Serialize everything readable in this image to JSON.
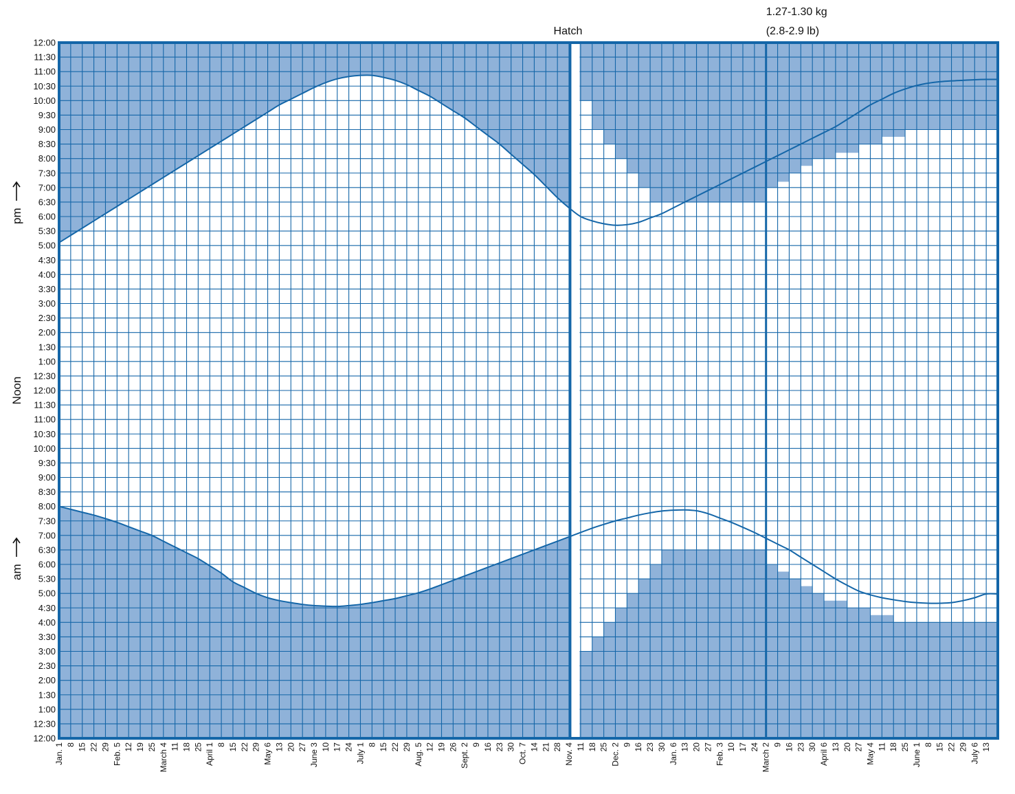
{
  "chart_data": {
    "type": "area",
    "y_ticks": [
      "12:00",
      "11:30",
      "11:00",
      "10:30",
      "10:00",
      "9:30",
      "9:00",
      "8:30",
      "8:00",
      "7:30",
      "7:00",
      "6:30",
      "6:00",
      "5:30",
      "5:00",
      "4:30",
      "4:00",
      "3:30",
      "3:00",
      "2:30",
      "2:00",
      "1:30",
      "1:00",
      "12:30",
      "12:00",
      "11:30",
      "11:00",
      "10:30",
      "10:00",
      "9:30",
      "9:00",
      "8:30",
      "8:00",
      "7:30",
      "7:00",
      "6:30",
      "6:00",
      "5:30",
      "5:00",
      "4:30",
      "4:00",
      "3:30",
      "3:00",
      "2:30",
      "2:00",
      "1:30",
      "1:00",
      "12:30",
      "12:00"
    ],
    "y_range_hours": [
      0,
      24
    ],
    "x_ticks": [
      "Jan. 1",
      "8",
      "15",
      "22",
      "29",
      "Feb. 5",
      "12",
      "19",
      "25",
      "March 4",
      "11",
      "18",
      "25",
      "April 1",
      "8",
      "15",
      "22",
      "29",
      "May 6",
      "13",
      "20",
      "27",
      "June 3",
      "10",
      "17",
      "24",
      "July 1",
      "8",
      "15",
      "22",
      "29",
      "Aug. 5",
      "12",
      "19",
      "26",
      "Sept. 2",
      "9",
      "16",
      "23",
      "30",
      "Oct. 7",
      "14",
      "21",
      "28",
      "Nov. 4",
      "11",
      "18",
      "25",
      "Dec. 2",
      "9",
      "16",
      "23",
      "30",
      "Jan. 6",
      "13",
      "20",
      "27",
      "Feb. 3",
      "10",
      "17",
      "24",
      "March 2",
      "9",
      "16",
      "23",
      "30",
      "April 6",
      "13",
      "20",
      "27",
      "May 4",
      "11",
      "18",
      "25",
      "June 1",
      "8",
      "15",
      "22",
      "29",
      "July 6",
      "13"
    ],
    "side_labels": {
      "pm": "pm",
      "noon": "Noon",
      "am": "am"
    },
    "annotations": {
      "hatch": "Hatch",
      "weight_line1": "1.27-1.30 kg",
      "weight_line2": "(2.8-2.9 lb)"
    },
    "hatch_week_index": 44.5,
    "weight_week_index": 61,
    "grid": true,
    "colors": {
      "line": "#1466a8",
      "fill": "#8fb2d9",
      "background": "#ffffff"
    },
    "series": [
      {
        "role": "sunset",
        "hours": [
          17.1,
          17.35,
          17.6,
          17.85,
          18.1,
          18.35,
          18.6,
          18.85,
          19.1,
          19.35,
          19.6,
          19.85,
          20.1,
          20.35,
          20.6,
          20.85,
          21.1,
          21.35,
          21.6,
          21.85,
          22.05,
          22.25,
          22.45,
          22.62,
          22.75,
          22.83,
          22.87,
          22.87,
          22.8,
          22.7,
          22.55,
          22.35,
          22.15,
          21.9,
          21.65,
          21.4,
          21.1,
          20.8,
          20.5,
          20.15,
          19.8,
          19.45,
          19.05,
          18.65,
          18.3,
          18.0,
          17.85,
          17.75,
          17.7,
          17.72,
          17.8,
          17.95,
          18.1,
          18.3,
          18.5,
          18.7,
          18.9,
          19.1,
          19.3,
          19.5,
          19.7,
          19.9,
          20.1,
          20.3,
          20.5,
          20.7,
          20.9,
          21.1,
          21.35,
          21.6,
          21.85,
          22.05,
          22.25,
          22.4,
          22.52,
          22.6,
          22.65,
          22.68,
          22.7,
          22.72,
          22.73
        ]
      },
      {
        "role": "sunrise",
        "hours": [
          8.0,
          7.9,
          7.8,
          7.7,
          7.58,
          7.45,
          7.3,
          7.15,
          7.0,
          6.8,
          6.6,
          6.4,
          6.2,
          5.95,
          5.7,
          5.4,
          5.2,
          5.0,
          4.85,
          4.75,
          4.68,
          4.62,
          4.58,
          4.56,
          4.55,
          4.58,
          4.62,
          4.68,
          4.75,
          4.82,
          4.92,
          5.02,
          5.15,
          5.3,
          5.45,
          5.6,
          5.75,
          5.9,
          6.05,
          6.2,
          6.35,
          6.5,
          6.65,
          6.8,
          6.95,
          7.1,
          7.25,
          7.38,
          7.5,
          7.6,
          7.7,
          7.78,
          7.84,
          7.87,
          7.88,
          7.85,
          7.75,
          7.6,
          7.45,
          7.28,
          7.1,
          6.9,
          6.7,
          6.5,
          6.25,
          6.0,
          5.75,
          5.5,
          5.28,
          5.08,
          4.95,
          4.85,
          4.78,
          4.72,
          4.68,
          4.66,
          4.66,
          4.68,
          4.75,
          4.85,
          4.98
        ]
      },
      {
        "role": "light-on",
        "hours": [
          21,
          21,
          21,
          21,
          21,
          21,
          21,
          21,
          21,
          21,
          21,
          21,
          21,
          21,
          21,
          21,
          21,
          21,
          21,
          21,
          21,
          21,
          21,
          21,
          21,
          21,
          21,
          21,
          21,
          21,
          21,
          21,
          21,
          21,
          21,
          21,
          21,
          21,
          21,
          21,
          21,
          21,
          21,
          21,
          21,
          21,
          21,
          21,
          21,
          21,
          21,
          21,
          21,
          21,
          21,
          21,
          21,
          21,
          21,
          21,
          21,
          21,
          21,
          21,
          21,
          21,
          21,
          21,
          21,
          21,
          21,
          21,
          21,
          21,
          21,
          21,
          21,
          21,
          21,
          21,
          21,
          21
        ]
      }
    ]
  }
}
